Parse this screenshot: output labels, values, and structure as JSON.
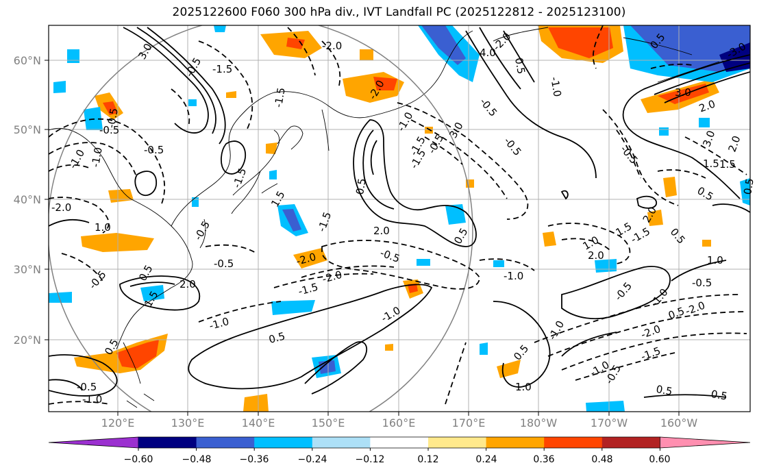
{
  "title": "2025122600 F060 300 hPa div., IVT Landfall PC (2025122812 - 2025123100)",
  "map": {
    "lat_labels": [
      "60°N",
      "50°N",
      "40°N",
      "30°N",
      "20°N"
    ],
    "lon_labels": [
      "120°E",
      "130°E",
      "140°E",
      "150°E",
      "160°E",
      "170°E",
      "180°W",
      "170°W",
      "160°W"
    ],
    "contour_labels": [
      {
        "text": "3.0"
      },
      {
        "text": "-2.0"
      },
      {
        "text": "-1.5"
      },
      {
        "text": "-0.5"
      },
      {
        "text": "-1.5"
      },
      {
        "text": "-0.5"
      },
      {
        "text": "-1.0"
      },
      {
        "text": "-0.5"
      },
      {
        "text": "-2.0"
      },
      {
        "text": "1.0"
      },
      {
        "text": "-0.5"
      },
      {
        "text": "-1.5"
      },
      {
        "text": "1.5"
      },
      {
        "text": "-2.0"
      },
      {
        "text": "2.0"
      },
      {
        "text": "-1.5"
      },
      {
        "text": "-0.5"
      },
      {
        "text": "-1.5"
      },
      {
        "text": "0.5"
      },
      {
        "text": "3.0"
      },
      {
        "text": "4.0"
      },
      {
        "text": "-2.0"
      },
      {
        "text": "-0.5"
      },
      {
        "text": "-0.5"
      },
      {
        "text": "-1.5"
      },
      {
        "text": "0.5"
      },
      {
        "text": "-1.0"
      },
      {
        "text": "0.5"
      },
      {
        "text": "-0.5"
      },
      {
        "text": "-0.5"
      },
      {
        "text": "-2.0"
      },
      {
        "text": "-1.0"
      },
      {
        "text": "0.5"
      },
      {
        "text": "2.0"
      },
      {
        "text": "0.5"
      },
      {
        "text": "-2.0"
      },
      {
        "text": "1.5"
      },
      {
        "text": "-1.5"
      },
      {
        "text": "-0.5"
      },
      {
        "text": "-1.0"
      },
      {
        "text": "-0.5"
      },
      {
        "text": "2.0"
      },
      {
        "text": "-1.0"
      },
      {
        "text": "-1.0"
      },
      {
        "text": "0.5"
      },
      {
        "text": "-1.0"
      },
      {
        "text": "0.5"
      },
      {
        "text": "1.5"
      },
      {
        "text": "1.0"
      },
      {
        "text": "0.5"
      },
      {
        "text": "-0.5"
      },
      {
        "text": "1.5"
      },
      {
        "text": "-1.0"
      },
      {
        "text": "-1.5"
      },
      {
        "text": "0.5"
      },
      {
        "text": "0.5"
      },
      {
        "text": "1.0"
      },
      {
        "text": "-0.5"
      },
      {
        "text": "-1.0"
      },
      {
        "text": "0.5"
      },
      {
        "text": "0.5"
      },
      {
        "text": "-1.5"
      },
      {
        "text": "-2.0"
      },
      {
        "text": "-2.0"
      },
      {
        "text": "0.5"
      },
      {
        "text": "-1.0"
      },
      {
        "text": "2.0"
      },
      {
        "text": "3.0"
      },
      {
        "text": "-3.0"
      },
      {
        "text": "1.5"
      },
      {
        "text": "2.0"
      },
      {
        "text": "3.0"
      },
      {
        "text": "0.5"
      },
      {
        "text": "-0.5"
      },
      {
        "text": "1.0"
      },
      {
        "text": "2.0"
      },
      {
        "text": "-0.5"
      },
      {
        "text": "-0.5"
      },
      {
        "text": "-1.0"
      }
    ]
  },
  "colorbar": {
    "tick_labels": [
      "−0.60",
      "−0.48",
      "−0.36",
      "−0.24",
      "−0.12",
      "0.12",
      "0.24",
      "0.36",
      "0.48",
      "0.60"
    ],
    "colors": [
      "#9b30d0",
      "#000080",
      "#3a5fd1",
      "#00bfff",
      "#ade0f7",
      "#ffffff",
      "#ffe98c",
      "#ffa500",
      "#ff4500",
      "#b22222",
      "#ff8fb0"
    ]
  }
}
